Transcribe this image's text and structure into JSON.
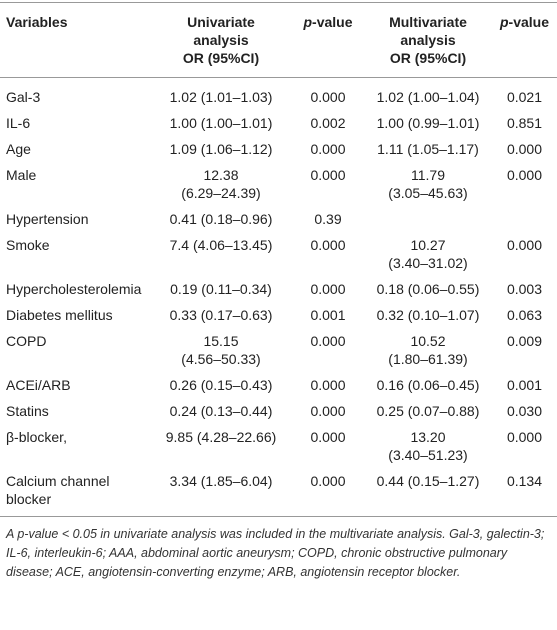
{
  "table": {
    "header": [
      "Variables",
      [
        "Univariate",
        "analysis",
        "OR (95%CI)"
      ],
      {
        "italic": "p",
        "rest": "-value"
      },
      [
        "Multivariate",
        "analysis",
        "OR (95%CI)"
      ],
      {
        "italic": "p",
        "rest": "-value"
      }
    ],
    "rows": [
      [
        "Gal-3",
        "1.02 (1.01–1.03)",
        "0.000",
        "1.02 (1.00–1.04)",
        "0.021"
      ],
      [
        "IL-6",
        "1.00 (1.00–1.01)",
        "0.002",
        "1.00 (0.99–1.01)",
        "0.851"
      ],
      [
        "Age",
        "1.09 (1.06–1.12)",
        "0.000",
        "1.11 (1.05–1.17)",
        "0.000"
      ],
      [
        "Male",
        [
          "12.38",
          "(6.29–24.39)"
        ],
        "0.000",
        [
          "11.79",
          "(3.05–45.63)"
        ],
        "0.000"
      ],
      [
        "Hypertension",
        "0.41 (0.18–0.96)",
        "0.39",
        null,
        null
      ],
      [
        "Smoke",
        "7.4 (4.06–13.45)",
        "0.000",
        [
          "10.27",
          "(3.40–31.02)"
        ],
        "0.000"
      ],
      [
        "Hypercholesterolemia",
        "0.19 (0.11–0.34)",
        "0.000",
        "0.18 (0.06–0.55)",
        "0.003"
      ],
      [
        "Diabetes mellitus",
        "0.33 (0.17–0.63)",
        "0.001",
        "0.32 (0.10–1.07)",
        "0.063"
      ],
      [
        "COPD",
        [
          "15.15",
          "(4.56–50.33)"
        ],
        "0.000",
        [
          "10.52",
          "(1.80–61.39)"
        ],
        "0.009"
      ],
      [
        "ACEi/ARB",
        "0.26 (0.15–0.43)",
        "0.000",
        "0.16 (0.06–0.45)",
        "0.001"
      ],
      [
        "Statins",
        "0.24 (0.13–0.44)",
        "0.000",
        "0.25 (0.07–0.88)",
        "0.030"
      ],
      [
        "β-blocker,",
        "9.85 (4.28–22.66)",
        "0.000",
        [
          "13.20",
          "(3.40–51.23)"
        ],
        "0.000"
      ],
      [
        [
          "Calcium channel",
          "blocker"
        ],
        "3.34 (1.85–6.04)",
        "0.000",
        "0.44 (0.15–1.27)",
        "0.134"
      ]
    ],
    "footnote": "A p-value < 0.05 in univariate analysis was included in the multivariate analysis. Gal-3, galectin-3; IL-6, interleukin-6; AAA, abdominal aortic aneurysm; COPD, chronic obstructive pulmonary disease; ACE, angiotensin-converting enzyme; ARB, angiotensin receptor blocker."
  }
}
